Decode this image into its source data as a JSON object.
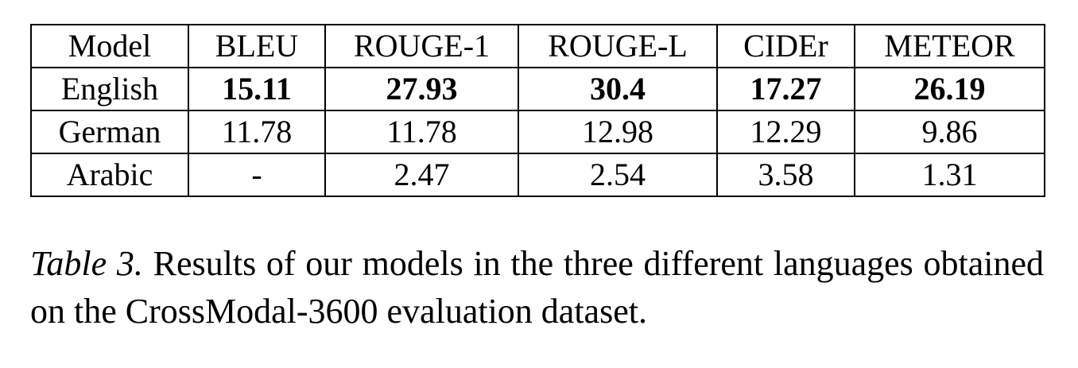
{
  "table": {
    "headers": [
      "Model",
      "BLEU",
      "ROUGE-1",
      "ROUGE-L",
      "CIDEr",
      "METEOR"
    ],
    "rows": [
      {
        "model": "English",
        "values": [
          "15.11",
          "27.93",
          "30.4",
          "17.27",
          "26.19"
        ],
        "bold": true
      },
      {
        "model": "German",
        "values": [
          "11.78",
          "11.78",
          "12.98",
          "12.29",
          "9.86"
        ],
        "bold": false
      },
      {
        "model": "Arabic",
        "values": [
          "-",
          "2.47",
          "2.54",
          "3.58",
          "1.31"
        ],
        "bold": false
      }
    ]
  },
  "caption": {
    "label": "Table 3.",
    "text": "Results of our models in the three different languages obtained on the CrossModal-3600 evaluation dataset."
  }
}
